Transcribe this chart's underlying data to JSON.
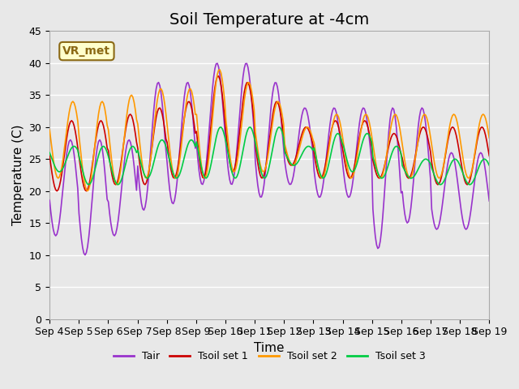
{
  "title": "Soil Temperature at -4cm",
  "xlabel": "Time",
  "ylabel": "Temperature (C)",
  "ylim": [
    0,
    45
  ],
  "yticks": [
    0,
    5,
    10,
    15,
    20,
    25,
    30,
    35,
    40,
    45
  ],
  "xlim_start": "Sep 4",
  "xlim_end": "Sep 19",
  "xtick_labels": [
    "Sep 4",
    "Sep 5",
    "Sep 6",
    "Sep 7",
    "Sep 8",
    "Sep 9",
    "Sep 10",
    "Sep 11",
    "Sep 12",
    "Sep 13",
    "Sep 14",
    "Sep 15",
    "Sep 16",
    "Sep 17",
    "Sep 18",
    "Sep 19"
  ],
  "background_color": "#e8e8e8",
  "plot_bg_color": "#e8e8e8",
  "grid_color": "#ffffff",
  "label_box_text": "VR_met",
  "label_box_bg": "#ffffcc",
  "label_box_edge": "#8B6914",
  "colors": {
    "Tair": "#9933cc",
    "Tsoil1": "#cc0000",
    "Tsoil2": "#ff9900",
    "Tsoil3": "#00cc44"
  },
  "legend_labels": [
    "Tair",
    "Tsoil set 1",
    "Tsoil set 2",
    "Tsoil set 3"
  ],
  "title_fontsize": 14,
  "axis_label_fontsize": 11,
  "tick_fontsize": 9
}
